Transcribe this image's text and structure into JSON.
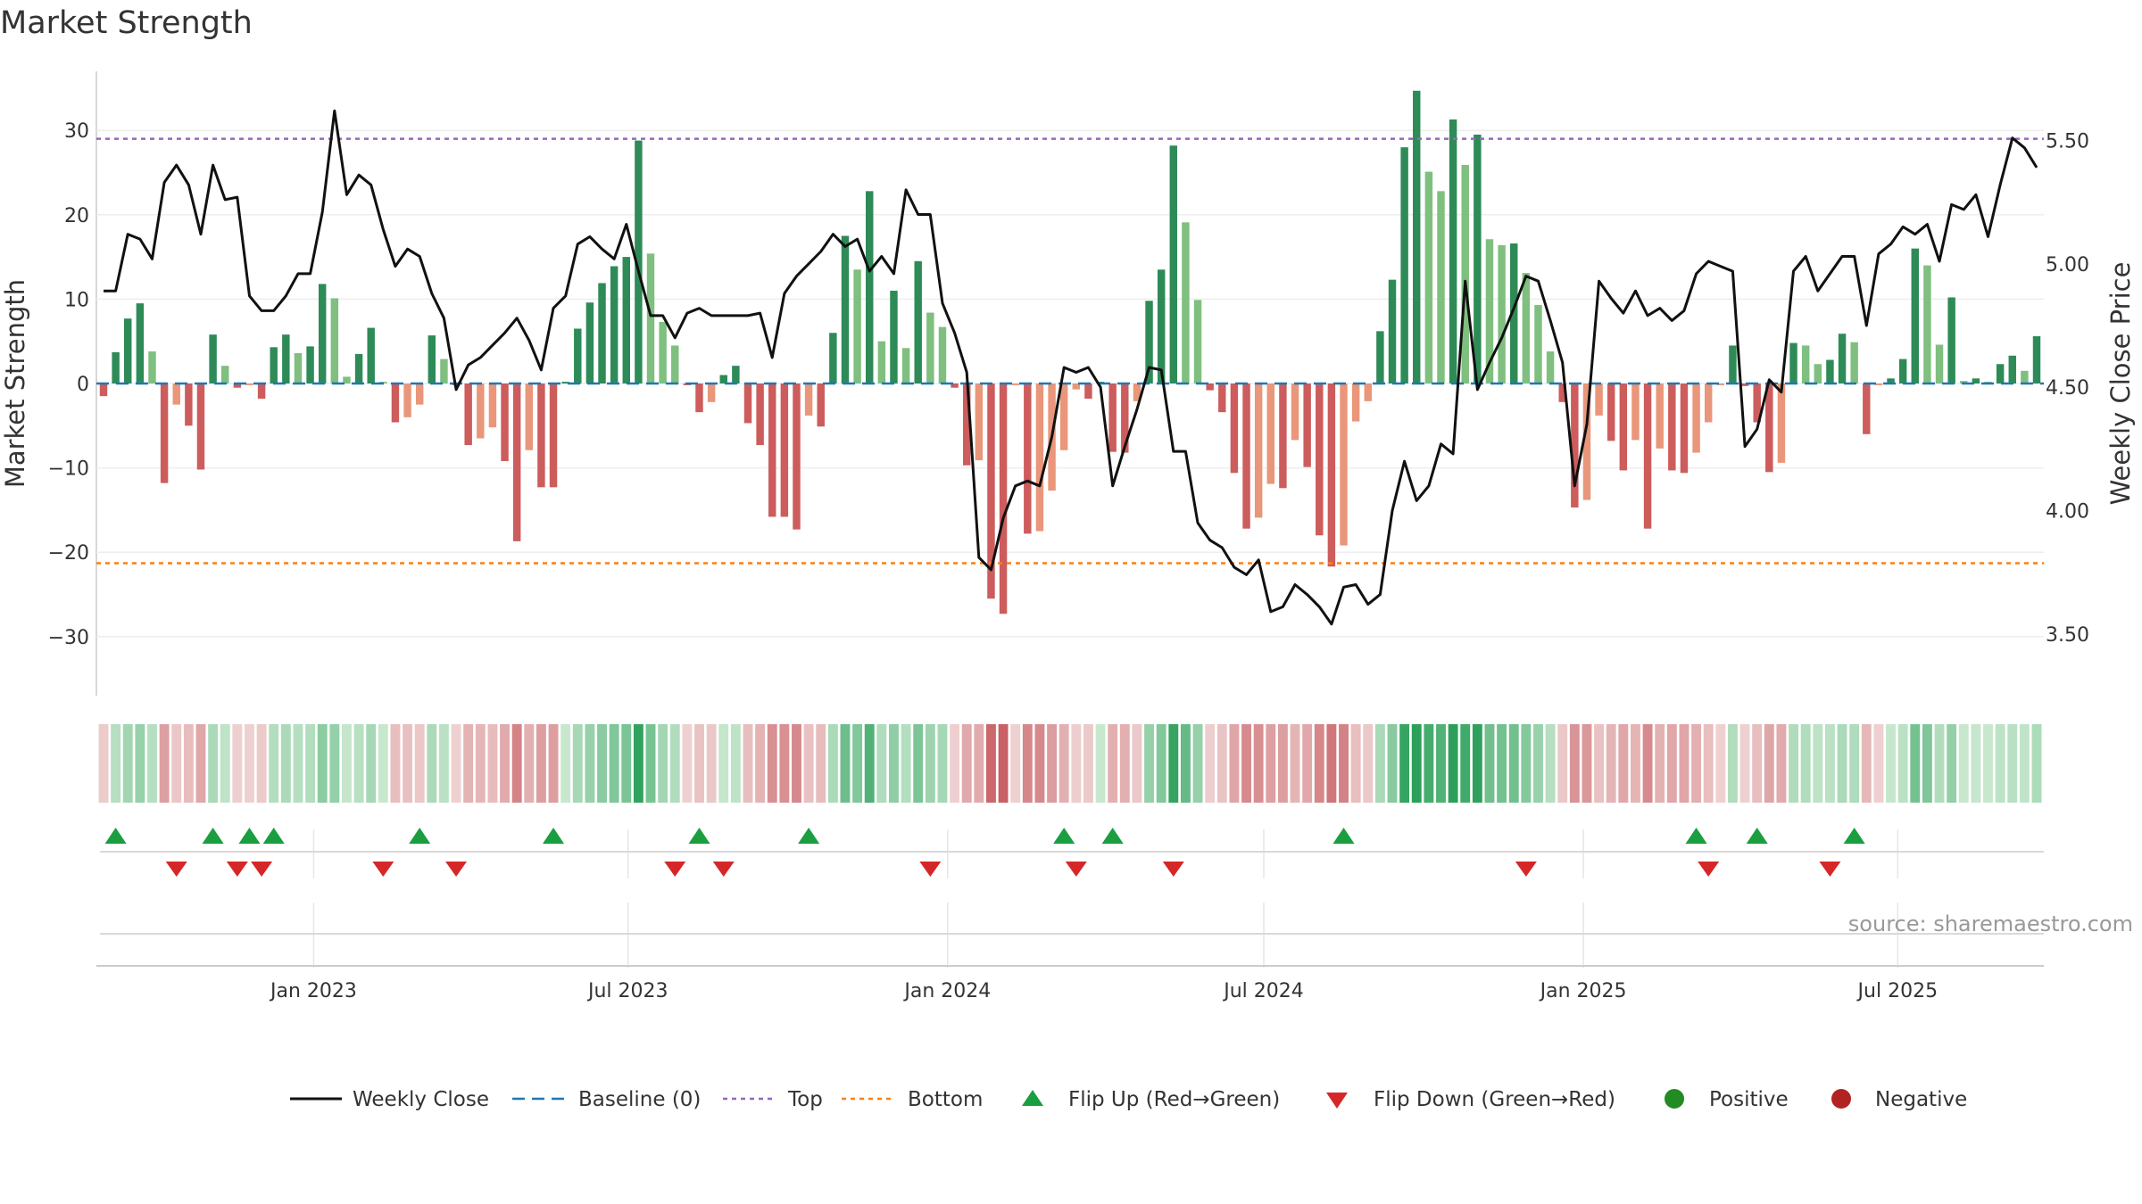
{
  "title": "Market Strength",
  "source": "source: sharemaestro.com",
  "colors": {
    "strong_green": "#2e8b57",
    "light_green": "#7fbf7f",
    "strong_red": "#cd5c5c",
    "light_red": "#e9967a",
    "line": "#111111",
    "baseline": "#1f77b4",
    "top": "#9467bd",
    "bottom": "#ff7f0e",
    "flip_up": "#1a9e3f",
    "flip_down": "#d62728",
    "positive": "#228b22",
    "negative": "#b22222"
  },
  "chart_data": {
    "type": "bar+line",
    "title": "Market Strength",
    "ylabel": "Market Strength",
    "y2label": "Weekly Close Price",
    "ylim": [
      -37,
      37
    ],
    "y2lim": [
      3.25,
      5.78
    ],
    "yticks": [
      -30,
      -20,
      -10,
      0,
      10,
      20,
      30
    ],
    "yticklabels": [
      "−30",
      "−20",
      "−10",
      "0",
      "10",
      "20",
      "30"
    ],
    "y2ticks": [
      3.5,
      4.0,
      4.5,
      5.0,
      5.5
    ],
    "y2ticklabels": [
      "3.50",
      "4.00",
      "4.50",
      "5.00",
      "5.50"
    ],
    "x_start": "2022-09-02",
    "week_days": 7,
    "xticks": [
      {
        "date": "2023-01-01",
        "label": "Jan 2023"
      },
      {
        "date": "2023-07-01",
        "label": "Jul 2023"
      },
      {
        "date": "2024-01-01",
        "label": "Jan 2024"
      },
      {
        "date": "2024-07-01",
        "label": "Jul 2024"
      },
      {
        "date": "2025-01-01",
        "label": "Jan 2025"
      },
      {
        "date": "2025-07-01",
        "label": "Jul 2025"
      }
    ],
    "top_line": 29,
    "bottom_line": -21.3,
    "strength": [
      -1.5,
      3.7,
      7.7,
      9.5,
      3.8,
      -11.8,
      -2.5,
      -5,
      -10.2,
      5.8,
      2.1,
      -0.5,
      -0.2,
      -1.8,
      4.3,
      5.8,
      3.6,
      4.4,
      11.8,
      10.1,
      0.8,
      3.5,
      6.6,
      0.2,
      -4.6,
      -4,
      -2.5,
      5.7,
      2.9,
      -0.2,
      -7.3,
      -6.5,
      -5.2,
      -9.2,
      -18.7,
      -7.9,
      -12.3,
      -12.3,
      0.2,
      6.5,
      9.6,
      11.9,
      13.9,
      15,
      28.8,
      15.4,
      7.3,
      4.5,
      -0.2,
      -3.4,
      -2.2,
      1,
      2.1,
      -4.7,
      -7.3,
      -15.8,
      -15.8,
      -17.3,
      -3.8,
      -5.1,
      6,
      17.5,
      13.5,
      22.8,
      5,
      11,
      4.2,
      14.5,
      8.4,
      6.7,
      -0.5,
      -9.7,
      -9.1,
      -25.5,
      -27.3,
      -0.2,
      -17.8,
      -17.5,
      -12.7,
      -7.9,
      -0.7,
      -1.8,
      0.2,
      -8.1,
      -8.2,
      -2.1,
      9.8,
      13.5,
      28.2,
      19.1,
      9.9,
      -0.8,
      -3.4,
      -10.6,
      -17.2,
      -15.9,
      -11.9,
      -12.4,
      -6.7,
      -9.9,
      -18,
      -21.7,
      -19.2,
      -4.5,
      -2.1,
      6.2,
      12.3,
      28,
      34.7,
      25.1,
      22.8,
      31.3,
      25.9,
      29.5,
      17.1,
      16.4,
      16.6,
      13.1,
      9.3,
      3.8,
      -2.2,
      -14.7,
      -13.8,
      -3.8,
      -6.8,
      -10.3,
      -6.7,
      -17.2,
      -7.7,
      -10.3,
      -10.6,
      -8.2,
      -4.6,
      -0.2,
      4.5,
      -0.3,
      -4.6,
      -10.5,
      -9.4,
      4.8,
      4.5,
      2.3,
      2.8,
      5.9,
      4.9,
      -6,
      -0.2,
      0.6,
      2.9,
      16,
      14,
      4.6,
      10.2,
      0.3,
      0.6,
      0.2,
      2.3,
      3.3,
      1.5,
      5.6
    ],
    "close": [
      4.89,
      4.89,
      5.12,
      5.1,
      5.02,
      5.33,
      5.4,
      5.32,
      5.12,
      5.4,
      5.26,
      5.27,
      4.87,
      4.81,
      4.81,
      4.87,
      4.96,
      4.96,
      5.21,
      5.62,
      5.28,
      5.36,
      5.32,
      5.14,
      4.99,
      5.06,
      5.03,
      4.88,
      4.78,
      4.49,
      4.59,
      4.62,
      4.67,
      4.72,
      4.78,
      4.69,
      4.57,
      4.82,
      4.87,
      5.08,
      5.11,
      5.06,
      5.02,
      5.16,
      4.97,
      4.79,
      4.79,
      4.7,
      4.8,
      4.82,
      4.79,
      4.79,
      4.79,
      4.79,
      4.8,
      4.62,
      4.88,
      4.95,
      5.0,
      5.05,
      5.12,
      5.07,
      5.1,
      4.97,
      5.03,
      4.96,
      5.3,
      5.2,
      5.2,
      4.84,
      4.72,
      4.56,
      3.81,
      3.76,
      3.97,
      4.1,
      4.12,
      4.1,
      4.3,
      4.58,
      4.56,
      4.58,
      4.5,
      4.1,
      4.26,
      4.41,
      4.58,
      4.57,
      4.24,
      4.24,
      3.95,
      3.88,
      3.85,
      3.77,
      3.74,
      3.8,
      3.59,
      3.61,
      3.7,
      3.66,
      3.61,
      3.54,
      3.69,
      3.7,
      3.62,
      3.66,
      4.0,
      4.2,
      4.04,
      4.1,
      4.27,
      4.23,
      4.93,
      4.49,
      4.6,
      4.7,
      4.82,
      4.95,
      4.93,
      4.77,
      4.6,
      4.1,
      4.35,
      4.93,
      4.86,
      4.8,
      4.89,
      4.79,
      4.82,
      4.77,
      4.81,
      4.96,
      5.01,
      4.99,
      4.97,
      4.26,
      4.33,
      4.53,
      4.48,
      4.97,
      5.03,
      4.89,
      4.96,
      5.03,
      5.03,
      4.75,
      5.04,
      5.08,
      5.15,
      5.12,
      5.16,
      5.01,
      5.24,
      5.22,
      5.28,
      5.11,
      5.32,
      5.51,
      5.47,
      5.39
    ],
    "flip_up_index": [
      1,
      9,
      12,
      14,
      26,
      37,
      49,
      58,
      79,
      83,
      102,
      131,
      136,
      144
    ],
    "flip_down_index": [
      6,
      11,
      13,
      23,
      29,
      47,
      51,
      68,
      80,
      88,
      117,
      132,
      142
    ],
    "legend": [
      "Weekly Close",
      "Baseline (0)",
      "Top",
      "Bottom",
      "Flip Up (Red→Green)",
      "Flip Down (Green→Red)",
      "Positive",
      "Negative"
    ]
  }
}
